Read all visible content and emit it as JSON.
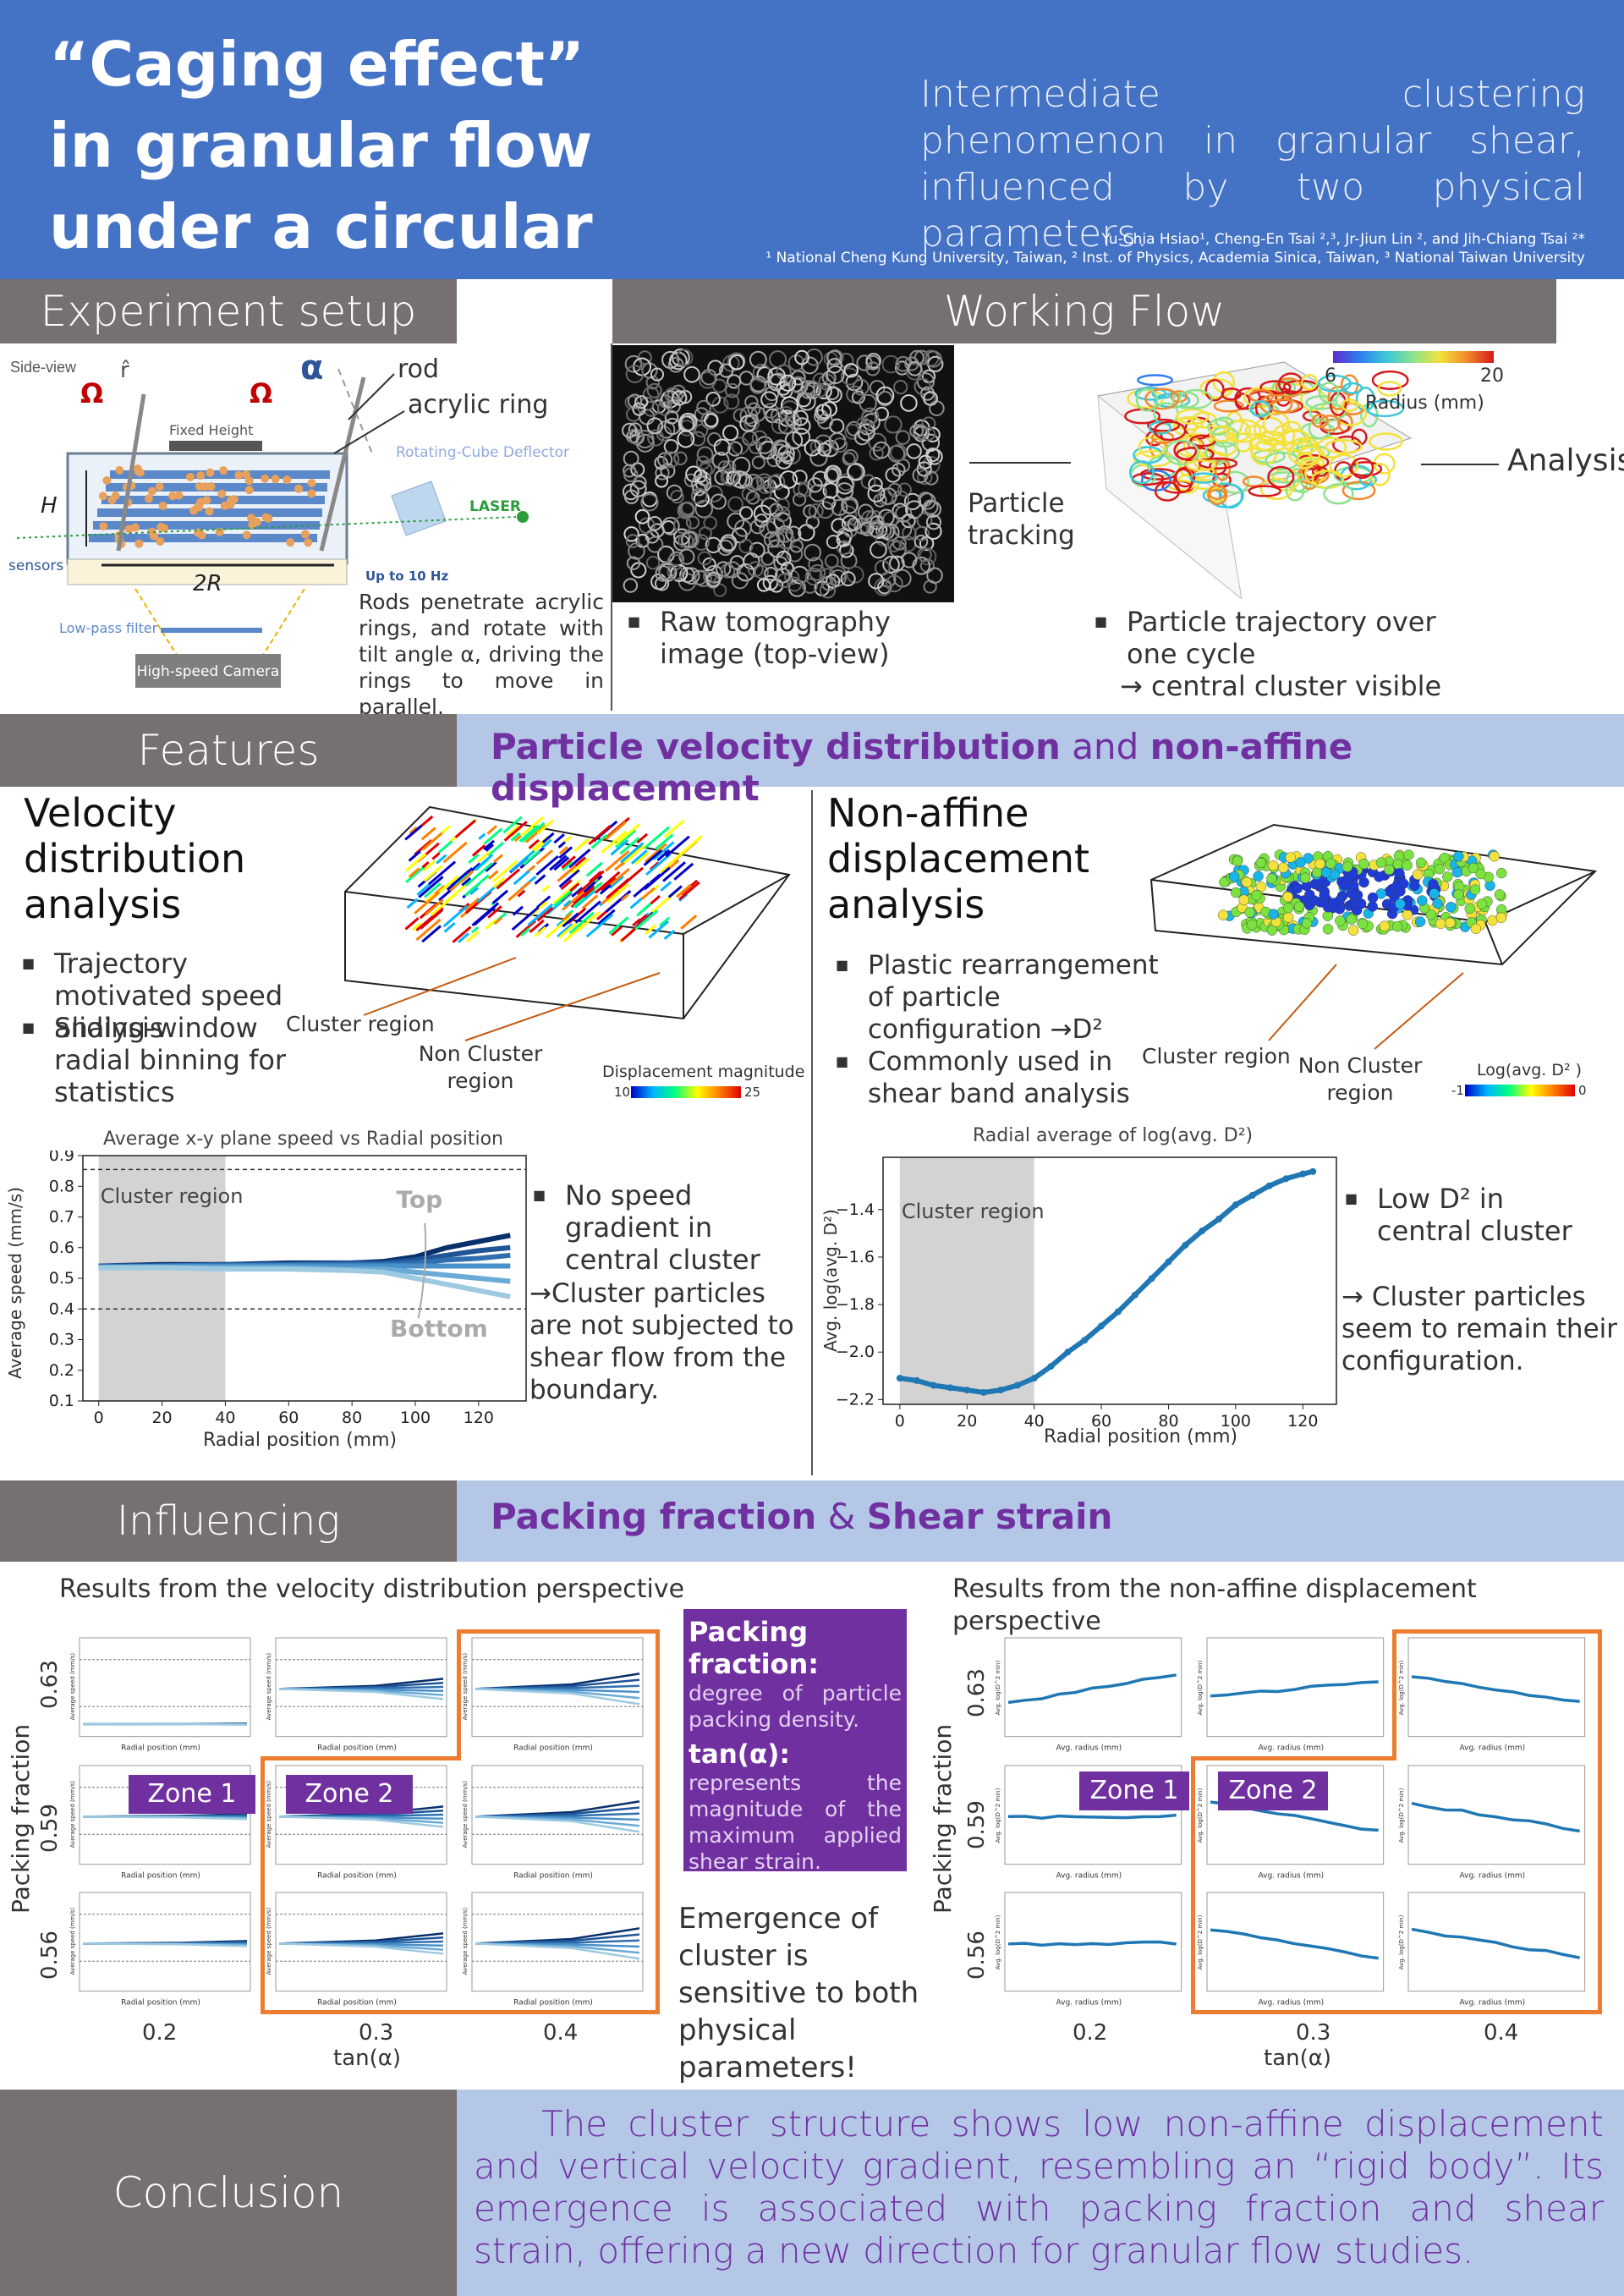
{
  "header": {
    "title_lines": [
      "“Caging effect”",
      "in granular flow",
      "under a circular shear"
    ],
    "subtitle": "Intermediate clustering phenomenon in granular shear, influenced by two physical parameters.",
    "authors": "Yu-Chia Hsiao¹, Cheng-En Tsai ²,³, Jr-Jiun Lin ², and Jih-Chiang Tsai ²*",
    "affiliations": "¹ National Cheng Kung University, Taiwan,   ² Inst. of Physics, Academia Sinica, Taiwan,   ³ National Taiwan University"
  },
  "sections": {
    "experiment": "Experiment setup",
    "working_flow": "Working Flow",
    "features": "Features",
    "features_band": {
      "a": "Particle velocity distribution",
      "b": " and ",
      "c": "non-affine displacement"
    },
    "influencing": "Influencing Parameters",
    "influencing_band": {
      "a": "Packing fraction",
      "b": " & ",
      "c": "Shear strain"
    },
    "conclusion": "Conclusion"
  },
  "setup": {
    "side_view": "Side-view",
    "r_hat": "r̂",
    "omega": "Ω",
    "alpha": "α",
    "rod": "rod",
    "acrylic_ring": "acrylic ring",
    "fixed_height": "Fixed Height",
    "deflector": "Rotating-Cube Deflector",
    "laser": "LASER",
    "up_to": "Up to 10 Hz",
    "H": "H",
    "two_R": "2R",
    "sensors": "sensors",
    "low_pass": "Low-pass filter",
    "camera": "High-speed Camera",
    "caption": "Rods penetrate acrylic rings, and rotate with tilt angle α,  driving the rings to move in parallel."
  },
  "workflow": {
    "particle_tracking": "Particle tracking",
    "analysis": "Analysis",
    "colorbar_min": "6",
    "colorbar_max": "20",
    "colorbar_label": "Radius (mm)",
    "raw_caption": "Raw tomography image (top-view)",
    "traj_caption_1": "Particle trajectory over one cycle",
    "traj_caption_2": "→ central cluster visible"
  },
  "velocity": {
    "heading": "Velocity distribution analysis",
    "bullet1": "Trajectory motivated speed analysis",
    "bullet2": "Sliding-window radial binning for statistics",
    "cluster_label": "Cluster region",
    "non_cluster_label": "Non Cluster region",
    "cbar_label": "Displacement magnitude",
    "cbar_min": "10",
    "cbar_max": "25",
    "note1": "No speed gradient in central cluster",
    "note2": "→Cluster particles are not subjected to shear flow from the boundary."
  },
  "nonaffine": {
    "heading": "Non-affine displacement analysis",
    "bullet1": "Plastic rearrangement of particle configuration →D²",
    "bullet2": "Commonly used in shear band analysis",
    "cluster_label": "Cluster region",
    "non_cluster_label": "Non Cluster region",
    "cbar_label": "Log(avg. D² )",
    "cbar_min": "-1",
    "cbar_max": "0",
    "note1": "Low D² in central cluster",
    "note2": "→ Cluster particles seem to remain their configuration."
  },
  "influencing": {
    "left_title": "Results from the velocity distribution perspective",
    "right_title": "Results from the non-affine displacement perspective",
    "ylabel": "Packing fraction",
    "xlabel": "tan(α)",
    "rows": [
      "0.63",
      "0.59",
      "0.56"
    ],
    "cols": [
      "0.2",
      "0.3",
      "0.4"
    ],
    "zone1": "Zone 1",
    "zone2": "Zone 2",
    "mini_left_x": "Radial position (mm)",
    "mini_left_y": "Average speed (mm/s)",
    "mini_right_x": "Avg. radius (mm)",
    "mini_right_y": "Avg. log(D^2 min)",
    "pf_title": "Packing fraction:",
    "pf_desc": "degree of particle packing density.",
    "tan_title": "tan(α):",
    "tan_desc": "represents the magnitude of the maximum applied shear strain.",
    "emergence": "Emergence of cluster is sensitive to both physical parameters!"
  },
  "conclusion_text": "The cluster structure shows low non-affine displacement and vertical velocity gradient, resembling an “rigid body”. Its emergence is associated with packing fraction and shear strain, offering a new direction for granular flow studies.",
  "chart_data": [
    {
      "type": "line",
      "title": "Average x-y plane speed vs Radial position",
      "xlabel": "Radial position (mm)",
      "ylabel": "Average speed (mm/s)",
      "xlim": [
        -5,
        135
      ],
      "ylim": [
        0.1,
        0.9
      ],
      "xticks": [
        0,
        20,
        40,
        60,
        80,
        100,
        120
      ],
      "yticks": [
        0.1,
        0.2,
        0.3,
        0.4,
        0.5,
        0.6,
        0.7,
        0.8,
        0.9
      ],
      "hlines": [
        0.4,
        0.855
      ],
      "shaded_region": [
        0,
        40
      ],
      "shaded_label": "Cluster region",
      "annotations": [
        "Top",
        "Bottom"
      ],
      "x": [
        0,
        20,
        40,
        60,
        80,
        90,
        100,
        110,
        120,
        130
      ],
      "series": [
        {
          "color": "#08306b",
          "values": [
            0.54,
            0.545,
            0.545,
            0.55,
            0.55,
            0.555,
            0.57,
            0.6,
            0.62,
            0.64
          ]
        },
        {
          "color": "#1f5497",
          "values": [
            0.54,
            0.54,
            0.545,
            0.545,
            0.55,
            0.55,
            0.56,
            0.575,
            0.59,
            0.6
          ]
        },
        {
          "color": "#2f6fb0",
          "values": [
            0.54,
            0.54,
            0.54,
            0.545,
            0.545,
            0.545,
            0.55,
            0.56,
            0.565,
            0.575
          ]
        },
        {
          "color": "#4a90c8",
          "values": [
            0.535,
            0.54,
            0.54,
            0.54,
            0.54,
            0.54,
            0.54,
            0.54,
            0.54,
            0.54
          ]
        },
        {
          "color": "#6aaad6",
          "values": [
            0.535,
            0.535,
            0.535,
            0.535,
            0.53,
            0.53,
            0.52,
            0.51,
            0.5,
            0.49
          ]
        },
        {
          "color": "#9ecae1",
          "values": [
            0.535,
            0.535,
            0.53,
            0.53,
            0.525,
            0.52,
            0.5,
            0.48,
            0.46,
            0.44
          ]
        }
      ]
    },
    {
      "type": "scatter",
      "title": "Radial average of log(avg. D²)",
      "xlabel": "Radial position (mm)",
      "ylabel": "Avg. log(avg. D²)",
      "xlim": [
        -5,
        130
      ],
      "ylim": [
        -2.22,
        -1.18
      ],
      "xticks": [
        0,
        20,
        40,
        60,
        80,
        100,
        120
      ],
      "yticks": [
        -2.2,
        -2.0,
        -1.8,
        -1.6,
        -1.4
      ],
      "shaded_region": [
        0,
        40
      ],
      "shaded_label": "Cluster region",
      "x": [
        0,
        5,
        10,
        15,
        20,
        25,
        30,
        35,
        40,
        45,
        50,
        55,
        60,
        65,
        70,
        75,
        80,
        85,
        90,
        95,
        100,
        105,
        110,
        115,
        120,
        123
      ],
      "values": [
        -2.11,
        -2.12,
        -2.14,
        -2.15,
        -2.16,
        -2.17,
        -2.16,
        -2.14,
        -2.11,
        -2.06,
        -2.0,
        -1.95,
        -1.89,
        -1.83,
        -1.76,
        -1.69,
        -1.62,
        -1.55,
        -1.49,
        -1.44,
        -1.38,
        -1.34,
        -1.3,
        -1.27,
        -1.25,
        -1.24
      ],
      "color": "#1f77b4"
    }
  ]
}
